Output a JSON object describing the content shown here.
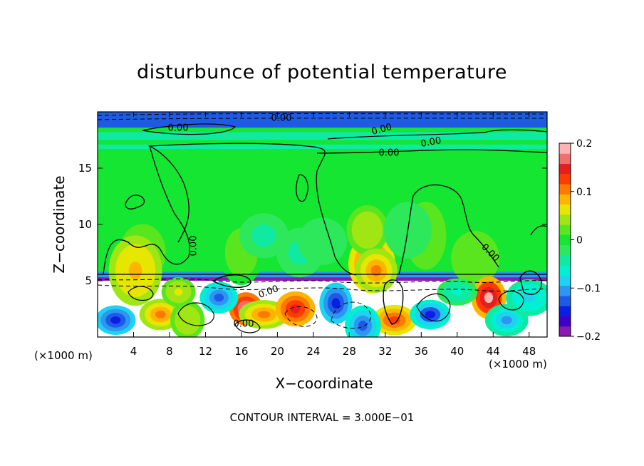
{
  "chart_data": {
    "type": "heatmap",
    "title": "disturbunce of potential temperature",
    "xlabel": "X−coordinate",
    "ylabel": "Z−coordinate",
    "x_unit_left": "(×1000 m)",
    "x_unit_right": "(×1000 m)",
    "footer": "CONTOUR INTERVAL = 3.000E−01",
    "xlim": [
      0,
      50
    ],
    "ylim": [
      0,
      20
    ],
    "x_ticks": [
      4,
      8,
      12,
      16,
      20,
      24,
      28,
      32,
      36,
      40,
      44,
      48
    ],
    "y_ticks": [
      5,
      10,
      15
    ],
    "colorbar": {
      "range": [
        -0.2,
        0.2
      ],
      "tick_labels": [
        {
          "value": 0.2,
          "label": "0.2"
        },
        {
          "value": 0.1,
          "label": "0.1"
        },
        {
          "value": 0.0,
          "label": "0"
        },
        {
          "value": -0.1,
          "label": "−0.1"
        },
        {
          "value": -0.2,
          "label": "−0.2"
        }
      ],
      "colors": [
        "#8a1ab0",
        "#3c00c8",
        "#0a1ee6",
        "#1e5ae6",
        "#2c96f0",
        "#1ed2f0",
        "#00f0d2",
        "#10eaa0",
        "#2ce85a",
        "#14e632",
        "#5ae61e",
        "#a0e614",
        "#e6e600",
        "#ffb400",
        "#ff7800",
        "#ff3c00",
        "#e61e1e",
        "#f06e6e",
        "#ffb4b4"
      ]
    },
    "contour_labels": [
      "0.00",
      "0.00",
      "0.00",
      "0.00",
      "0.00",
      "0.00",
      "0.00",
      "0.00",
      "0.00"
    ],
    "field_summary": {
      "background_value": -0.01,
      "bands": [
        {
          "z_range": [
            18.6,
            20
          ],
          "value": -0.12
        },
        {
          "z_range": [
            17.5,
            18.2
          ],
          "value": -0.04
        },
        {
          "z_range": [
            16.7,
            17.1
          ],
          "value": -0.04
        },
        {
          "z_range": [
            5.3,
            5.8
          ],
          "value": -0.1
        },
        {
          "z_range": [
            5.0,
            5.3
          ],
          "value": -0.18
        }
      ],
      "blobs": [
        {
          "x": 30.5,
          "z": 6.5,
          "value": 0.11
        },
        {
          "x": 30.0,
          "z": 9.5,
          "value": 0.05
        },
        {
          "x": 5.0,
          "z": 7.5,
          "value": 0.04
        },
        {
          "x": 36.5,
          "z": 9.0,
          "value": 0.03
        },
        {
          "x": 42.0,
          "z": 7.0,
          "value": 0.03
        },
        {
          "x": 16.0,
          "z": 7.5,
          "value": 0.02
        },
        {
          "x": 18.5,
          "z": 9.0,
          "value": -0.04
        },
        {
          "x": 22.5,
          "z": 7.5,
          "value": -0.04
        },
        {
          "x": 25.0,
          "z": 8.5,
          "value": -0.03
        },
        {
          "x": 34.5,
          "z": 9.5,
          "value": -0.03
        },
        {
          "x": 31.0,
          "z": 5.9,
          "value": 0.1
        },
        {
          "x": 4.2,
          "z": 5.9,
          "value": 0.08
        },
        {
          "x": 16.5,
          "z": 2.5,
          "value": 0.2
        },
        {
          "x": 18.5,
          "z": 2.0,
          "value": 0.1
        },
        {
          "x": 22.0,
          "z": 2.5,
          "value": 0.15
        },
        {
          "x": 33.0,
          "z": 1.5,
          "value": 0.12
        },
        {
          "x": 43.5,
          "z": 3.5,
          "value": 0.18
        },
        {
          "x": 2.0,
          "z": 1.5,
          "value": -0.15
        },
        {
          "x": 7.0,
          "z": 2.0,
          "value": 0.1
        },
        {
          "x": 10.0,
          "z": 1.5,
          "value": 0.05
        },
        {
          "x": 13.5,
          "z": 3.5,
          "value": -0.12
        },
        {
          "x": 26.5,
          "z": 3.0,
          "value": -0.15
        },
        {
          "x": 29.5,
          "z": 1.0,
          "value": -0.12
        },
        {
          "x": 37.0,
          "z": 2.0,
          "value": -0.14
        },
        {
          "x": 45.5,
          "z": 1.5,
          "value": -0.1
        },
        {
          "x": 48.0,
          "z": 3.5,
          "value": -0.08
        },
        {
          "x": 9.0,
          "z": 4.0,
          "value": 0.06
        },
        {
          "x": 40.0,
          "z": 4.0,
          "value": -0.06
        }
      ]
    }
  }
}
